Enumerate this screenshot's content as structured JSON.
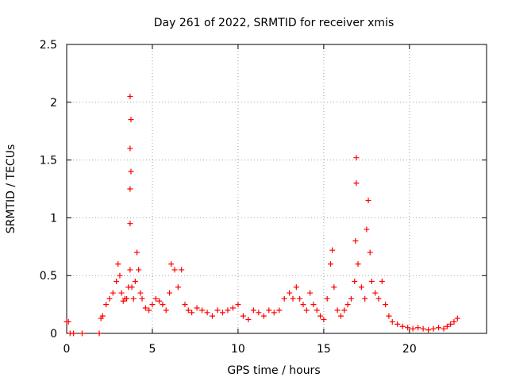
{
  "chart_data": {
    "type": "scatter",
    "title": "Day 261 of 2022, SRMTID for receiver xmis",
    "xlabel": "GPS time / hours",
    "ylabel": "SRMTID / TECUs",
    "xlim": [
      0,
      24.5
    ],
    "ylim": [
      0,
      2.5
    ],
    "xticks": [
      0,
      5,
      10,
      15,
      20
    ],
    "xtick_labels": [
      "0",
      "5",
      "10",
      "15",
      "20"
    ],
    "yticks": [
      0,
      0.5,
      1,
      1.5,
      2,
      2.5
    ],
    "ytick_labels": [
      "0",
      "0.5",
      "1",
      "1.5",
      "2",
      "2.5"
    ],
    "grid": true,
    "marker": "+",
    "series": [
      {
        "name": "SRMTID",
        "color": "#ff0000",
        "x": [
          0.0,
          0.1,
          0.2,
          0.4,
          0.9,
          1.9,
          2.0,
          2.1,
          2.3,
          2.5,
          2.7,
          2.9,
          3.0,
          3.1,
          3.2,
          3.3,
          3.4,
          3.5,
          3.6,
          3.7,
          3.7,
          3.7,
          3.7,
          3.7,
          3.75,
          3.75,
          3.8,
          3.9,
          4.0,
          4.1,
          4.2,
          4.3,
          4.4,
          4.6,
          4.8,
          5.0,
          5.2,
          5.4,
          5.6,
          5.8,
          6.0,
          6.1,
          6.3,
          6.5,
          6.7,
          6.9,
          7.1,
          7.3,
          7.6,
          7.9,
          8.2,
          8.5,
          8.8,
          9.1,
          9.4,
          9.7,
          10.0,
          10.3,
          10.6,
          10.9,
          11.2,
          11.5,
          11.8,
          12.1,
          12.4,
          12.7,
          13.0,
          13.2,
          13.4,
          13.6,
          13.8,
          14.0,
          14.2,
          14.4,
          14.6,
          14.8,
          15.0,
          15.2,
          15.4,
          15.5,
          15.6,
          15.8,
          16.0,
          16.2,
          16.4,
          16.6,
          16.8,
          16.85,
          16.9,
          16.9,
          17.0,
          17.2,
          17.4,
          17.5,
          17.6,
          17.7,
          17.8,
          18.0,
          18.2,
          18.4,
          18.6,
          18.8,
          19.0,
          19.3,
          19.6,
          19.9,
          20.2,
          20.5,
          20.8,
          21.1,
          21.4,
          21.7,
          22.0,
          22.2,
          22.4,
          22.6,
          22.8
        ],
        "y": [
          0.1,
          0.1,
          0.0,
          0.0,
          0.0,
          0.0,
          0.13,
          0.15,
          0.25,
          0.3,
          0.35,
          0.45,
          0.6,
          0.5,
          0.35,
          0.28,
          0.3,
          0.3,
          0.4,
          0.55,
          0.95,
          1.25,
          1.6,
          2.05,
          1.85,
          1.4,
          0.4,
          0.3,
          0.45,
          0.7,
          0.55,
          0.35,
          0.3,
          0.22,
          0.2,
          0.25,
          0.3,
          0.28,
          0.25,
          0.2,
          0.35,
          0.6,
          0.55,
          0.4,
          0.55,
          0.25,
          0.2,
          0.18,
          0.22,
          0.2,
          0.18,
          0.15,
          0.2,
          0.18,
          0.2,
          0.22,
          0.25,
          0.15,
          0.12,
          0.2,
          0.18,
          0.15,
          0.2,
          0.18,
          0.2,
          0.3,
          0.35,
          0.3,
          0.4,
          0.3,
          0.25,
          0.2,
          0.35,
          0.25,
          0.2,
          0.15,
          0.12,
          0.3,
          0.6,
          0.72,
          0.4,
          0.2,
          0.15,
          0.2,
          0.25,
          0.3,
          0.45,
          0.8,
          1.3,
          1.52,
          0.6,
          0.4,
          0.3,
          0.9,
          1.15,
          0.7,
          0.45,
          0.35,
          0.3,
          0.45,
          0.25,
          0.15,
          0.1,
          0.08,
          0.06,
          0.05,
          0.04,
          0.05,
          0.04,
          0.03,
          0.04,
          0.05,
          0.04,
          0.06,
          0.08,
          0.1,
          0.13
        ]
      }
    ]
  }
}
